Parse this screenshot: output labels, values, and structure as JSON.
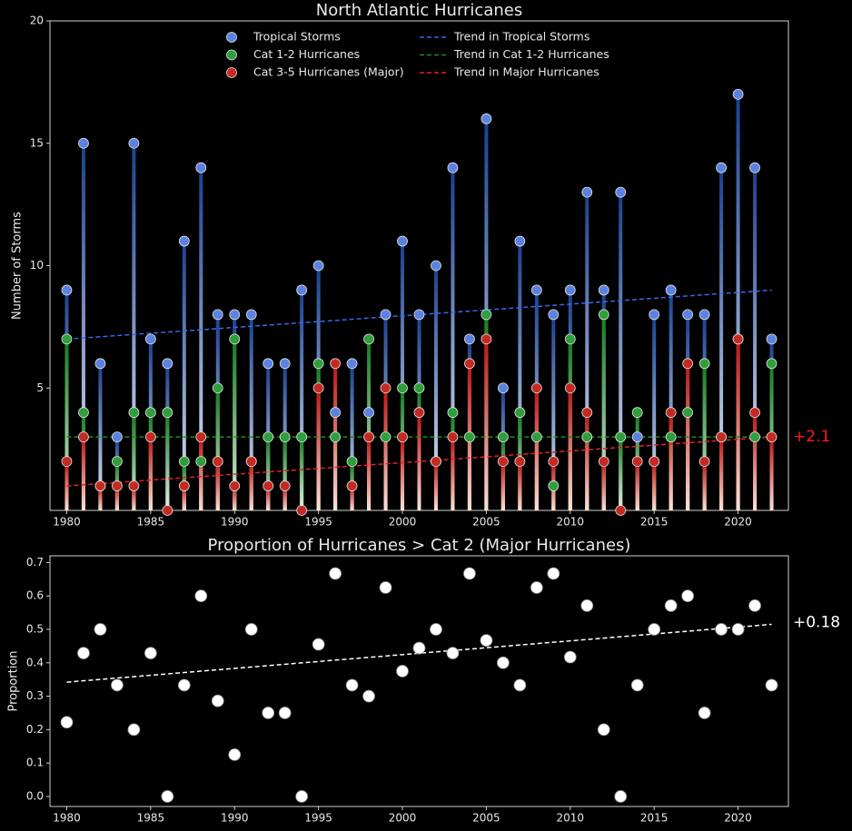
{
  "chart_data": [
    {
      "type": "stem",
      "title": "North Atlantic Hurricanes",
      "ylabel": "Number of Storms",
      "x": [
        1980,
        1981,
        1982,
        1983,
        1984,
        1985,
        1986,
        1987,
        1988,
        1989,
        1990,
        1991,
        1992,
        1993,
        1994,
        1995,
        1996,
        1997,
        1998,
        1999,
        2000,
        2001,
        2002,
        2003,
        2004,
        2005,
        2006,
        2007,
        2008,
        2009,
        2010,
        2011,
        2012,
        2013,
        2014,
        2015,
        2016,
        2017,
        2018,
        2019,
        2020,
        2021,
        2022
      ],
      "series": [
        {
          "name": "Tropical Storms",
          "color": "#5b82e0",
          "stem_colors": [
            "#173f8f",
            "#e8effa"
          ],
          "values": [
            9,
            15,
            6,
            3,
            15,
            7,
            6,
            11,
            14,
            8,
            8,
            8,
            6,
            6,
            9,
            10,
            4,
            6,
            4,
            8,
            11,
            8,
            10,
            14,
            7,
            16,
            5,
            11,
            9,
            8,
            9,
            13,
            9,
            13,
            3,
            8,
            9,
            8,
            8,
            14,
            17,
            14,
            7
          ]
        },
        {
          "name": "Cat 1-2 Hurricanes",
          "color": "#2f9e3c",
          "stem_colors": [
            "#137a1c",
            "#e4f4e4"
          ],
          "values": [
            7,
            4,
            1,
            2,
            4,
            4,
            4,
            2,
            2,
            5,
            7,
            2,
            3,
            3,
            3,
            6,
            3,
            2,
            7,
            3,
            5,
            5,
            2,
            4,
            3,
            8,
            3,
            4,
            3,
            1,
            7,
            3,
            8,
            3,
            4,
            2,
            3,
            4,
            6,
            3,
            7,
            3,
            6
          ]
        },
        {
          "name": "Cat 3-5 Hurricanes (Major)",
          "color": "#c42a22",
          "stem_colors": [
            "#c0100e",
            "#fde3d6"
          ],
          "values": [
            2,
            3,
            1,
            1,
            1,
            3,
            0,
            1,
            3,
            2,
            1,
            2,
            1,
            1,
            0,
            5,
            6,
            1,
            3,
            5,
            3,
            4,
            2,
            3,
            6,
            7,
            2,
            2,
            5,
            2,
            5,
            4,
            2,
            0,
            2,
            2,
            4,
            6,
            2,
            3,
            7,
            4,
            3
          ]
        }
      ],
      "trends": [
        {
          "name": "Trend in Tropical Storms",
          "color": "#3e64ea",
          "x": [
            1980,
            2022
          ],
          "values": [
            7,
            9
          ]
        },
        {
          "name": "Trend in Cat 1-2 Hurricanes",
          "color": "#1f8a22",
          "x": [
            1980,
            2022
          ],
          "values": [
            3,
            3
          ]
        },
        {
          "name": "Trend in Major Hurricanes",
          "color": "#e0202a",
          "x": [
            1980,
            2022
          ],
          "values": [
            1,
            3
          ]
        }
      ],
      "annotation": "+2.1",
      "annotation_color": "#ff1a1a",
      "xlim": [
        1979,
        2023
      ],
      "ylim": [
        0,
        20
      ],
      "xticks": [
        1980,
        1985,
        1990,
        1995,
        2000,
        2005,
        2010,
        2015,
        2020
      ],
      "yticks": [
        5,
        10,
        15,
        20
      ]
    },
    {
      "type": "scatter",
      "title": "Proportion of Hurricanes > Cat 2 (Major Hurricanes)",
      "ylabel": "Proportion",
      "x": [
        1980,
        1981,
        1982,
        1983,
        1984,
        1985,
        1986,
        1987,
        1988,
        1989,
        1990,
        1991,
        1992,
        1993,
        1994,
        1995,
        1996,
        1997,
        1998,
        1999,
        2000,
        2001,
        2002,
        2003,
        2004,
        2005,
        2006,
        2007,
        2008,
        2009,
        2010,
        2011,
        2012,
        2013,
        2014,
        2015,
        2016,
        2017,
        2018,
        2019,
        2020,
        2021,
        2022
      ],
      "values": [
        0.222,
        0.429,
        0.5,
        0.333,
        0.2,
        0.429,
        0,
        0.333,
        0.6,
        0.286,
        0.125,
        0.5,
        0.25,
        0.25,
        0,
        0.455,
        0.667,
        0.333,
        0.3,
        0.625,
        0.375,
        0.444,
        0.5,
        0.429,
        0.667,
        0.467,
        0.4,
        0.333,
        0.625,
        0.667,
        0.417,
        0.571,
        0.2,
        0,
        0.333,
        0.5,
        0.571,
        0.6,
        0.25,
        0.5,
        0.5,
        0.571,
        0.333
      ],
      "color": "#ffffff",
      "trend": {
        "color": "#ffffff",
        "x": [
          1980,
          2022
        ],
        "values": [
          0.342,
          0.515
        ]
      },
      "annotation": "+0.18",
      "annotation_color": "#ffffff",
      "xlim": [
        1979,
        2023
      ],
      "ylim": [
        -0.03,
        0.72
      ],
      "xticks": [
        1980,
        1985,
        1990,
        1995,
        2000,
        2005,
        2010,
        2015,
        2020
      ],
      "yticks": [
        {
          "value": 0,
          "label": "0.0"
        },
        0.1,
        0.2,
        0.3,
        0.4,
        0.5,
        0.6,
        0.7
      ]
    }
  ]
}
